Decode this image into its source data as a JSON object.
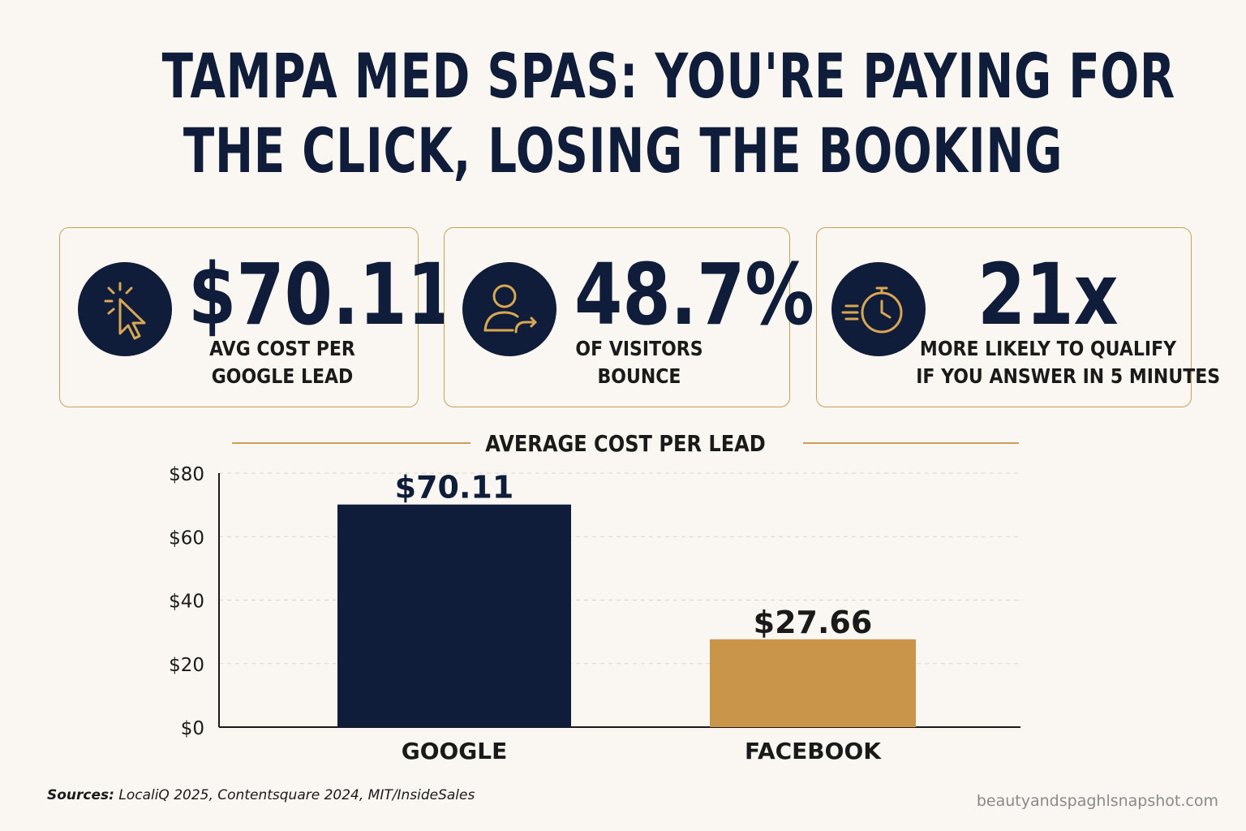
{
  "headline": {
    "line1": "TAMPA MED SPAS: YOU'RE PAYING FOR",
    "line2": "THE CLICK, LOSING THE BOOKING"
  },
  "stats": [
    {
      "value": "$70.11",
      "label_line1": "AVG COST PER",
      "label_line2": "GOOGLE LEAD",
      "icon": "cursor-click-icon"
    },
    {
      "value": "48.7%",
      "label_line1": "OF VISITORS",
      "label_line2": "BOUNCE",
      "icon": "user-bounce-icon"
    },
    {
      "value": "21x",
      "label_line1": "MORE LIKELY TO QUALIFY",
      "label_line2": "IF YOU ANSWER IN 5 MINUTES",
      "icon": "stopwatch-icon"
    }
  ],
  "colors": {
    "navy": "#0f1d3a",
    "gold": "#c9954a",
    "background": "#faf7f2"
  },
  "chart_data": {
    "type": "bar",
    "title": "AVERAGE COST PER LEAD",
    "categories": [
      "GOOGLE",
      "FACEBOOK"
    ],
    "values": [
      70.11,
      27.66
    ],
    "value_labels": [
      "$70.11",
      "$27.66"
    ],
    "bar_colors": [
      "#0f1d3a",
      "#c9954a"
    ],
    "ylim": [
      0,
      80
    ],
    "yticks": [
      0,
      20,
      40,
      60,
      80
    ],
    "ytick_labels": [
      "$0",
      "$20",
      "$40",
      "$60",
      "$80"
    ],
    "grid": true,
    "xlabel": "",
    "ylabel": ""
  },
  "footer": {
    "sources_label": "Sources:",
    "sources_text": "LocaliQ 2025, Contentsquare 2024, MIT/InsideSales",
    "website": "beautyandspaghlsnapshot.com"
  }
}
